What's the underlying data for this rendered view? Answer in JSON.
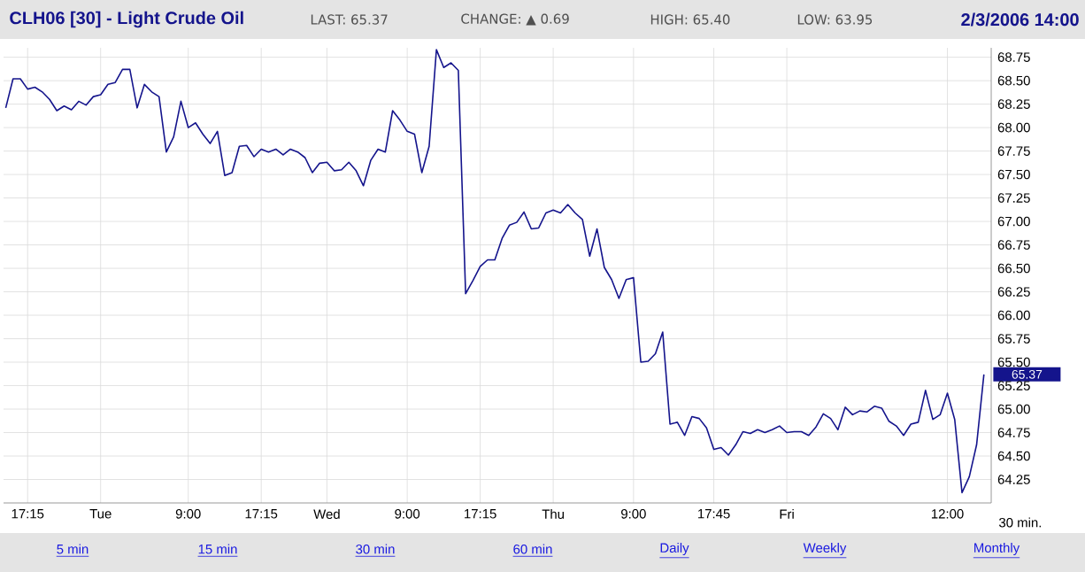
{
  "chart_data": {
    "type": "line",
    "title": "CLH06 [30] - Light Crude Oil",
    "xlabel": "30 min.",
    "annotations": [
      "LAST: 65.37",
      "CHANGE: ▲ 0.69",
      "HIGH: 65.40",
      "LOW: 63.95",
      "2/3/2006 14:00",
      "65.37",
      "5 min",
      "15 min",
      "30 min",
      "60 min",
      "Daily",
      "Weekly",
      "Monthly"
    ],
    "categories": [
      null,
      null,
      null,
      "17:15",
      null,
      null,
      null,
      null,
      null,
      null,
      null,
      null,
      null,
      "Tue",
      null,
      null,
      null,
      null,
      null,
      null,
      null,
      null,
      null,
      null,
      null,
      "9:00",
      null,
      null,
      null,
      null,
      null,
      null,
      null,
      null,
      null,
      "17:15",
      null,
      null,
      null,
      null,
      null,
      null,
      null,
      null,
      "Wed",
      null,
      null,
      null,
      null,
      null,
      null,
      null,
      null,
      null,
      null,
      "9:00",
      null,
      null,
      null,
      null,
      null,
      null,
      null,
      null,
      null,
      "17:15",
      null,
      null,
      null,
      null,
      null,
      null,
      null,
      null,
      null,
      "Thu",
      null,
      null,
      null,
      null,
      null,
      null,
      null,
      null,
      null,
      null,
      "9:00",
      null,
      null,
      null,
      null,
      null,
      null,
      null,
      null,
      null,
      null,
      "17:45",
      null,
      null,
      null,
      null,
      null,
      null,
      null,
      null,
      null,
      "Fri",
      null,
      null,
      null,
      null,
      null,
      null,
      null,
      null,
      null,
      null,
      null,
      null,
      null,
      null,
      null,
      null,
      null,
      null,
      null,
      null,
      null,
      "12:00",
      null,
      null,
      null,
      null,
      null
    ],
    "series": [
      {
        "color": "#14148c",
        "values": [
          68.21,
          68.52,
          68.52,
          68.41,
          68.43,
          68.38,
          68.3,
          68.18,
          68.23,
          68.19,
          68.28,
          68.24,
          68.33,
          68.35,
          68.46,
          68.48,
          68.62,
          68.62,
          68.21,
          68.46,
          68.38,
          68.33,
          67.74,
          67.9,
          68.28,
          68.0,
          68.05,
          67.93,
          67.83,
          67.96,
          67.49,
          67.52,
          67.8,
          67.81,
          67.69,
          67.77,
          67.74,
          67.77,
          67.71,
          67.77,
          67.74,
          67.68,
          67.52,
          67.62,
          67.63,
          67.54,
          67.55,
          67.63,
          67.54,
          67.38,
          67.65,
          67.77,
          67.74,
          68.18,
          68.08,
          67.96,
          67.93,
          67.52,
          67.8,
          68.83,
          68.64,
          68.69,
          68.61,
          66.23,
          66.37,
          66.52,
          66.59,
          66.59,
          66.82,
          66.96,
          66.99,
          67.1,
          66.92,
          66.93,
          67.09,
          67.12,
          67.09,
          67.18,
          67.09,
          67.02,
          66.63,
          66.92,
          66.51,
          66.38,
          66.18,
          66.38,
          66.4,
          65.5,
          65.51,
          65.59,
          65.82,
          64.84,
          64.86,
          64.72,
          64.92,
          64.9,
          64.8,
          64.57,
          64.59,
          64.51,
          64.62,
          64.76,
          64.74,
          64.78,
          64.75,
          64.78,
          64.82,
          64.75,
          64.76,
          64.76,
          64.72,
          64.81,
          64.95,
          64.9,
          64.78,
          65.02,
          64.94,
          64.98,
          64.97,
          65.03,
          65.01,
          64.87,
          64.82,
          64.72,
          64.84,
          64.86,
          65.2,
          64.89,
          64.94,
          65.17,
          64.89,
          64.11,
          64.28,
          64.62,
          65.37
        ]
      }
    ],
    "ylim": [
      64.0,
      68.85
    ],
    "yticks": [
      {
        "value": 64.25,
        "label": "64.25"
      },
      {
        "value": 64.5,
        "label": "64.50"
      },
      {
        "value": 64.75,
        "label": "64.75"
      },
      {
        "value": 65,
        "label": "65.00"
      },
      {
        "value": 65.25,
        "label": "65.25"
      },
      {
        "value": 65.5,
        "label": "65.50"
      },
      {
        "value": 65.75,
        "label": "65.75"
      },
      {
        "value": 66,
        "label": "66.00"
      },
      {
        "value": 66.25,
        "label": "66.25"
      },
      {
        "value": 66.5,
        "label": "66.50"
      },
      {
        "value": 66.75,
        "label": "66.75"
      },
      {
        "value": 67,
        "label": "67.00"
      },
      {
        "value": 67.25,
        "label": "67.25"
      },
      {
        "value": 67.5,
        "label": "67.50"
      },
      {
        "value": 67.75,
        "label": "67.75"
      },
      {
        "value": 68,
        "label": "68.00"
      },
      {
        "value": 68.25,
        "label": "68.25"
      },
      {
        "value": 68.5,
        "label": "68.50"
      },
      {
        "value": 68.75,
        "label": "68.75"
      }
    ],
    "grid": true,
    "marker": "none",
    "line_style": "solid"
  }
}
